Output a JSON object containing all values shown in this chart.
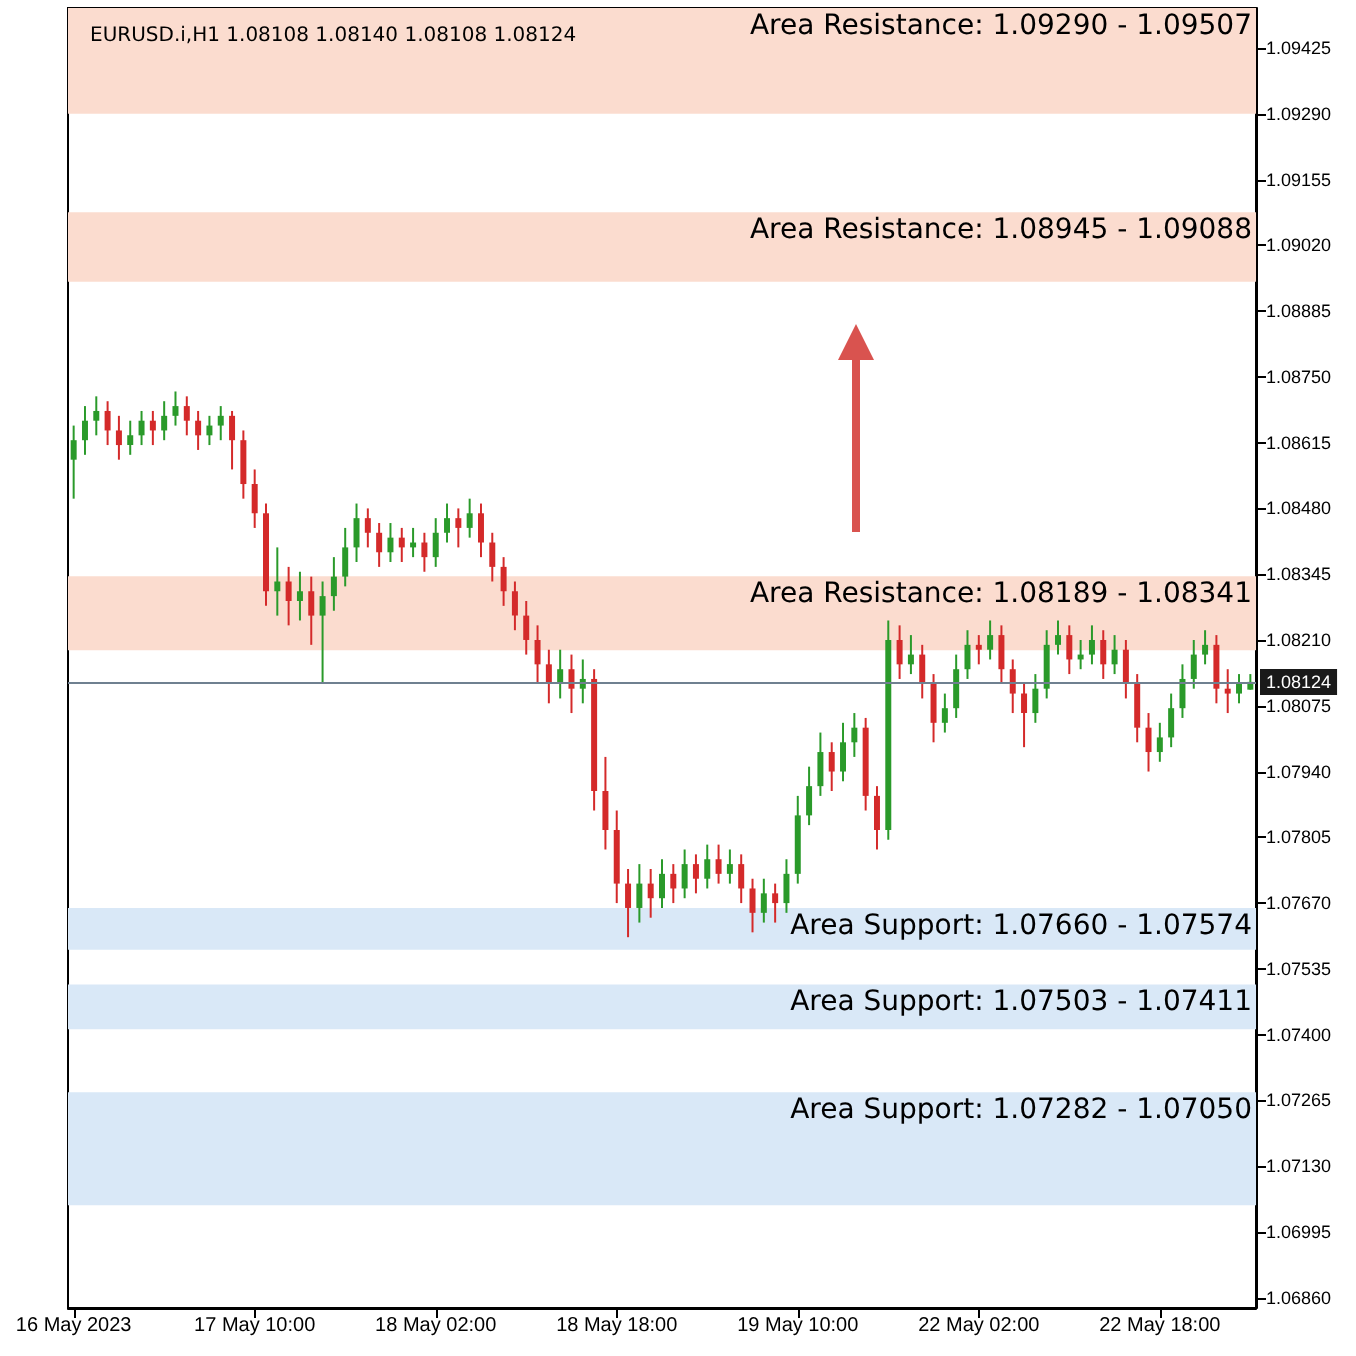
{
  "chart_data": {
    "type": "candlestick",
    "annotations": [
      "EURUSD.i,H1 1.08108 1.08140 1.08108 1.08124"
    ],
    "categories": [
      "16 May 2023",
      null,
      null,
      null,
      null,
      null,
      null,
      null,
      null,
      null,
      null,
      null,
      null,
      null,
      null,
      null,
      "17 May 10:00",
      null,
      null,
      null,
      null,
      null,
      null,
      null,
      null,
      null,
      null,
      null,
      null,
      null,
      null,
      null,
      "18 May 02:00",
      null,
      null,
      null,
      null,
      null,
      null,
      null,
      null,
      null,
      null,
      null,
      null,
      null,
      null,
      null,
      "18 May 18:00",
      null,
      null,
      null,
      null,
      null,
      null,
      null,
      null,
      null,
      null,
      null,
      null,
      null,
      null,
      null,
      "19 May 10:00",
      null,
      null,
      null,
      null,
      null,
      null,
      null,
      null,
      null,
      null,
      null,
      null,
      null,
      null,
      null,
      "22 May 02:00",
      null,
      null,
      null,
      null,
      null,
      null,
      null,
      null,
      null,
      null,
      null,
      null,
      null,
      null,
      null,
      "22 May 18:00",
      null,
      null,
      null,
      null,
      null,
      null,
      null,
      null
    ],
    "ohlc": [
      [
        1.0858,
        1.0865,
        1.085,
        1.0862
      ],
      [
        1.0862,
        1.0869,
        1.0859,
        1.0866
      ],
      [
        1.0866,
        1.0871,
        1.0863,
        1.0868
      ],
      [
        1.0868,
        1.087,
        1.0861,
        1.0864
      ],
      [
        1.0864,
        1.0867,
        1.0858,
        1.0861
      ],
      [
        1.0861,
        1.0866,
        1.0859,
        1.0863
      ],
      [
        1.0863,
        1.0868,
        1.0861,
        1.0866
      ],
      [
        1.0866,
        1.0868,
        1.0861,
        1.0864
      ],
      [
        1.0864,
        1.087,
        1.0862,
        1.0867
      ],
      [
        1.0867,
        1.0872,
        1.0865,
        1.0869
      ],
      [
        1.0869,
        1.0871,
        1.0863,
        1.0866
      ],
      [
        1.0866,
        1.0868,
        1.086,
        1.0863
      ],
      [
        1.0863,
        1.0867,
        1.0861,
        1.0865
      ],
      [
        1.0865,
        1.0869,
        1.0862,
        1.0867
      ],
      [
        1.0867,
        1.0868,
        1.0856,
        1.0862
      ],
      [
        1.0862,
        1.0864,
        1.085,
        1.0853
      ],
      [
        1.0853,
        1.0856,
        1.0844,
        1.0847
      ],
      [
        1.0847,
        1.0849,
        1.0828,
        1.0831
      ],
      [
        1.0831,
        1.084,
        1.0826,
        1.0833
      ],
      [
        1.0833,
        1.0836,
        1.0824,
        1.0829
      ],
      [
        1.0829,
        1.0835,
        1.0825,
        1.0831
      ],
      [
        1.0831,
        1.0834,
        1.082,
        1.0826
      ],
      [
        1.0826,
        1.0833,
        1.0812,
        1.083
      ],
      [
        1.083,
        1.0838,
        1.0827,
        1.0834
      ],
      [
        1.0834,
        1.0844,
        1.0832,
        1.084
      ],
      [
        1.084,
        1.0849,
        1.0837,
        1.0846
      ],
      [
        1.0846,
        1.0848,
        1.084,
        1.0843
      ],
      [
        1.0843,
        1.0845,
        1.0836,
        1.0839
      ],
      [
        1.0839,
        1.0845,
        1.0837,
        1.0842
      ],
      [
        1.0842,
        1.0844,
        1.0837,
        1.084
      ],
      [
        1.084,
        1.0844,
        1.0838,
        1.0841
      ],
      [
        1.0841,
        1.0843,
        1.0835,
        1.0838
      ],
      [
        1.0838,
        1.0846,
        1.0836,
        1.0843
      ],
      [
        1.0843,
        1.0849,
        1.0841,
        1.0846
      ],
      [
        1.0846,
        1.0848,
        1.084,
        1.0844
      ],
      [
        1.0844,
        1.085,
        1.0842,
        1.0847
      ],
      [
        1.0847,
        1.0849,
        1.0838,
        1.0841
      ],
      [
        1.0841,
        1.0843,
        1.0833,
        1.0836
      ],
      [
        1.0836,
        1.0838,
        1.0828,
        1.0831
      ],
      [
        1.0831,
        1.0833,
        1.0823,
        1.0826
      ],
      [
        1.0826,
        1.0829,
        1.0818,
        1.0821
      ],
      [
        1.0821,
        1.0824,
        1.0812,
        1.0816
      ],
      [
        1.0816,
        1.0819,
        1.0808,
        1.0812
      ],
      [
        1.0812,
        1.0819,
        1.0809,
        1.0815
      ],
      [
        1.0815,
        1.0818,
        1.0806,
        1.0811
      ],
      [
        1.0811,
        1.0817,
        1.0808,
        1.0813
      ],
      [
        1.0813,
        1.0815,
        1.0786,
        1.079
      ],
      [
        1.079,
        1.0797,
        1.0778,
        1.0782
      ],
      [
        1.0782,
        1.0786,
        1.0767,
        1.0771
      ],
      [
        1.0771,
        1.0774,
        1.076,
        1.0766
      ],
      [
        1.0766,
        1.0775,
        1.0763,
        1.0771
      ],
      [
        1.0771,
        1.0774,
        1.0764,
        1.0768
      ],
      [
        1.0768,
        1.0776,
        1.0766,
        1.0773
      ],
      [
        1.0773,
        1.0775,
        1.0767,
        1.077
      ],
      [
        1.077,
        1.0778,
        1.0768,
        1.0775
      ],
      [
        1.0775,
        1.0777,
        1.0769,
        1.0772
      ],
      [
        1.0772,
        1.0779,
        1.077,
        1.0776
      ],
      [
        1.0776,
        1.0779,
        1.0771,
        1.0773
      ],
      [
        1.0773,
        1.0778,
        1.0771,
        1.0775
      ],
      [
        1.0775,
        1.0777,
        1.0767,
        1.077
      ],
      [
        1.077,
        1.0772,
        1.0761,
        1.0765
      ],
      [
        1.0765,
        1.0772,
        1.0763,
        1.0769
      ],
      [
        1.0769,
        1.0771,
        1.0763,
        1.0767
      ],
      [
        1.0767,
        1.0776,
        1.0765,
        1.0773
      ],
      [
        1.0773,
        1.0789,
        1.0771,
        1.0785
      ],
      [
        1.0785,
        1.0795,
        1.0783,
        1.0791
      ],
      [
        1.0791,
        1.0802,
        1.0789,
        1.0798
      ],
      [
        1.0798,
        1.08,
        1.079,
        1.0794
      ],
      [
        1.0794,
        1.0804,
        1.0792,
        1.08
      ],
      [
        1.08,
        1.0806,
        1.0797,
        1.0803
      ],
      [
        1.0803,
        1.0805,
        1.0786,
        1.0789
      ],
      [
        1.0789,
        1.0791,
        1.0778,
        1.0782
      ],
      [
        1.0782,
        1.0825,
        1.078,
        1.0821
      ],
      [
        1.0821,
        1.0824,
        1.0813,
        1.0816
      ],
      [
        1.0816,
        1.0822,
        1.0814,
        1.0818
      ],
      [
        1.0818,
        1.082,
        1.0809,
        1.0812
      ],
      [
        1.0812,
        1.0814,
        1.08,
        1.0804
      ],
      [
        1.0804,
        1.081,
        1.0802,
        1.0807
      ],
      [
        1.0807,
        1.0818,
        1.0805,
        1.0815
      ],
      [
        1.0815,
        1.0823,
        1.0813,
        1.082
      ],
      [
        1.082,
        1.0822,
        1.0816,
        1.0819
      ],
      [
        1.0819,
        1.0825,
        1.0817,
        1.0822
      ],
      [
        1.0822,
        1.0824,
        1.0812,
        1.0815
      ],
      [
        1.0815,
        1.0817,
        1.0806,
        1.081
      ],
      [
        1.081,
        1.0812,
        1.0799,
        1.0806
      ],
      [
        1.0806,
        1.0814,
        1.0804,
        1.0811
      ],
      [
        1.0811,
        1.0823,
        1.0809,
        1.082
      ],
      [
        1.082,
        1.0825,
        1.0818,
        1.0822
      ],
      [
        1.0822,
        1.0824,
        1.0814,
        1.0817
      ],
      [
        1.0817,
        1.0821,
        1.0815,
        1.0818
      ],
      [
        1.0818,
        1.0824,
        1.0816,
        1.0821
      ],
      [
        1.0821,
        1.0823,
        1.0813,
        1.0816
      ],
      [
        1.0816,
        1.0822,
        1.0814,
        1.0819
      ],
      [
        1.0819,
        1.0821,
        1.0809,
        1.0812
      ],
      [
        1.0812,
        1.0814,
        1.08,
        1.0803
      ],
      [
        1.0803,
        1.0806,
        1.0794,
        1.0798
      ],
      [
        1.0798,
        1.0804,
        1.0796,
        1.0801
      ],
      [
        1.0801,
        1.081,
        1.0799,
        1.0807
      ],
      [
        1.0807,
        1.0816,
        1.0805,
        1.0813
      ],
      [
        1.0813,
        1.0821,
        1.0811,
        1.0818
      ],
      [
        1.0818,
        1.0823,
        1.0816,
        1.082
      ],
      [
        1.082,
        1.0822,
        1.0808,
        1.0811
      ],
      [
        1.0811,
        1.0815,
        1.0806,
        1.081
      ],
      [
        1.081,
        1.0814,
        1.0808,
        1.0812
      ],
      [
        1.08108,
        1.0814,
        1.08108,
        1.08124
      ]
    ],
    "ylim": [
      1.06839,
      1.09507
    ],
    "yticks": [
      {
        "value": 1.0686,
        "label": "1.06860"
      },
      {
        "value": 1.06995,
        "label": "1.06995"
      },
      {
        "value": 1.0713,
        "label": "1.07130"
      },
      {
        "value": 1.07265,
        "label": "1.07265"
      },
      {
        "value": 1.074,
        "label": "1.07400"
      },
      {
        "value": 1.07535,
        "label": "1.07535"
      },
      {
        "value": 1.0767,
        "label": "1.07670"
      },
      {
        "value": 1.07805,
        "label": "1.07805"
      },
      {
        "value": 1.0794,
        "label": "1.07940"
      },
      {
        "value": 1.08075,
        "label": "1.08075"
      },
      {
        "value": 1.0821,
        "label": "1.08210"
      },
      {
        "value": 1.08345,
        "label": "1.08345"
      },
      {
        "value": 1.0848,
        "label": "1.08480"
      },
      {
        "value": 1.08615,
        "label": "1.08615"
      },
      {
        "value": 1.0875,
        "label": "1.08750"
      },
      {
        "value": 1.08885,
        "label": "1.08885"
      },
      {
        "value": 1.0902,
        "label": "1.09020"
      },
      {
        "value": 1.09155,
        "label": "1.09155"
      },
      {
        "value": 1.0929,
        "label": "1.09290"
      },
      {
        "value": 1.09425,
        "label": "1.09425"
      }
    ],
    "bands": [
      {
        "axis": "y",
        "from": 1.0929,
        "to": 1.09507,
        "label": "Area Resistance: 1.09290 - 1.09507",
        "color": "#fbdccf"
      },
      {
        "axis": "y",
        "from": 1.08945,
        "to": 1.09088,
        "label": "Area Resistance: 1.08945 - 1.09088",
        "color": "#fbdccf"
      },
      {
        "axis": "y",
        "from": 1.08189,
        "to": 1.08341,
        "label": "Area Resistance: 1.08189 - 1.08341",
        "color": "#fbdccf"
      },
      {
        "axis": "y",
        "from": 1.07574,
        "to": 1.0766,
        "label": "Area Support: 1.07660 - 1.07574",
        "color": "#d9e8f7"
      },
      {
        "axis": "y",
        "from": 1.07411,
        "to": 1.07503,
        "label": "Area Support: 1.07503 - 1.07411",
        "color": "#d9e8f7"
      },
      {
        "axis": "y",
        "from": 1.0705,
        "to": 1.07282,
        "label": "Area Support: 1.07282 - 1.07050",
        "color": "#d9e8f7"
      }
    ],
    "ref_lines": [
      {
        "axis": "y",
        "value": 1.08124,
        "label": "1.08124",
        "color": "#6f8090"
      }
    ],
    "grid": false
  }
}
